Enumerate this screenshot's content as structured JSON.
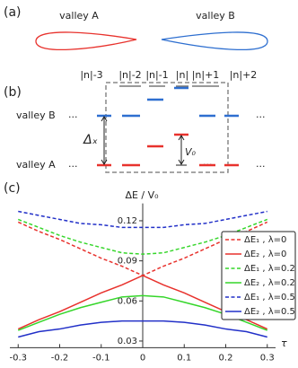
{
  "panels": {
    "a": {
      "label": "(a)",
      "valley_a": "valley A",
      "valley_b": "valley B"
    },
    "b": {
      "label": "(b)",
      "levels": [
        "|n|-3",
        "|n|-2",
        "|n|-1",
        "|n|",
        "|n|+1",
        "|n|+2"
      ],
      "valley_b": "valley B",
      "valley_a": "valley A",
      "dots": "...",
      "delta_x": "Δₓ",
      "v0": "V₀"
    },
    "c": {
      "label": "(c)"
    }
  },
  "chart_data": {
    "type": "line",
    "title": "ΔE / V₀",
    "x_label": "τ",
    "x": [
      -0.3,
      -0.25,
      -0.2,
      -0.15,
      -0.1,
      -0.05,
      0,
      0.05,
      0.1,
      0.15,
      0.2,
      0.25,
      0.3
    ],
    "xlim": [
      -0.32,
      0.32
    ],
    "xticks": [
      -0.3,
      -0.2,
      -0.1,
      0,
      0.1,
      0.2,
      0.3
    ],
    "ylim": [
      0.025,
      0.133
    ],
    "yticks": [
      0.03,
      0.06,
      0.09,
      0.12
    ],
    "series": [
      {
        "name": "ΔE₁ , λ=0",
        "color": "#e8322d",
        "dashed": true,
        "values": [
          0.119,
          0.112,
          0.106,
          0.099,
          0.092,
          0.086,
          0.079,
          0.086,
          0.092,
          0.099,
          0.106,
          0.112,
          0.119
        ]
      },
      {
        "name": "ΔE₂ , λ=0",
        "color": "#e8322d",
        "dashed": false,
        "values": [
          0.039,
          0.046,
          0.052,
          0.059,
          0.066,
          0.072,
          0.079,
          0.072,
          0.066,
          0.059,
          0.052,
          0.046,
          0.039
        ]
      },
      {
        "name": "ΔE₁ , λ=0.2",
        "color": "#35d62a",
        "dashed": true,
        "values": [
          0.121,
          0.115,
          0.109,
          0.104,
          0.1,
          0.096,
          0.095,
          0.096,
          0.1,
          0.104,
          0.109,
          0.115,
          0.121
        ]
      },
      {
        "name": "ΔE₂ , λ=0.2",
        "color": "#35d62a",
        "dashed": false,
        "values": [
          0.038,
          0.044,
          0.05,
          0.055,
          0.059,
          0.063,
          0.064,
          0.063,
          0.059,
          0.055,
          0.05,
          0.044,
          0.038
        ]
      },
      {
        "name": "ΔE₁ , λ=0.5",
        "color": "#2230c8",
        "dashed": true,
        "values": [
          0.127,
          0.124,
          0.121,
          0.118,
          0.117,
          0.115,
          0.115,
          0.115,
          0.117,
          0.118,
          0.121,
          0.124,
          0.127
        ]
      },
      {
        "name": "ΔE₂ , λ=0.5",
        "color": "#2230c8",
        "dashed": false,
        "values": [
          0.033,
          0.037,
          0.039,
          0.042,
          0.044,
          0.045,
          0.045,
          0.045,
          0.044,
          0.042,
          0.039,
          0.037,
          0.033
        ]
      }
    ]
  }
}
